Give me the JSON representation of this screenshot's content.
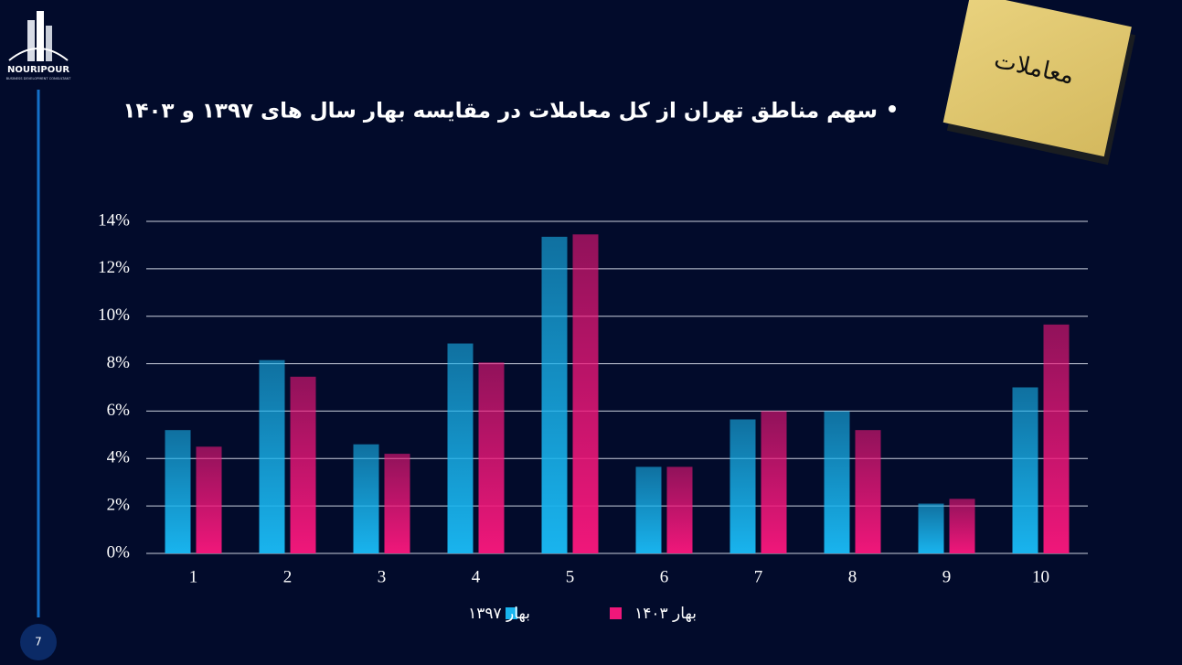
{
  "slide": {
    "logo_name": "NOURIPOUR",
    "logo_tagline": "BUSINESS DEVELOPMENT CONSULTANT",
    "note": "معاملات",
    "page_number": "7"
  },
  "chart_data": {
    "type": "bar",
    "title": "سهم مناطق تهران از کل معاملات در مقایسه بهار سال های ۱۳۹۷ و ۱۴۰۳",
    "categories": [
      "1",
      "2",
      "3",
      "4",
      "5",
      "6",
      "7",
      "8",
      "9",
      "10"
    ],
    "series": [
      {
        "name": "بهار ۱۳۹۷",
        "color": "#19b4ee",
        "values": [
          5.2,
          8.15,
          4.6,
          8.85,
          13.35,
          3.65,
          5.65,
          6.0,
          2.1,
          7.0
        ]
      },
      {
        "name": "بهار ۱۴۰۳",
        "color": "#f0177a",
        "values": [
          4.5,
          7.45,
          4.2,
          8.05,
          13.45,
          3.65,
          6.0,
          5.2,
          2.3,
          9.65
        ]
      }
    ],
    "ylim": [
      0,
      14
    ],
    "yticks": [
      {
        "value": 0,
        "label": "0%"
      },
      {
        "value": 2,
        "label": "2%"
      },
      {
        "value": 4,
        "label": "4%"
      },
      {
        "value": 6,
        "label": "6%"
      },
      {
        "value": 8,
        "label": "8%"
      },
      {
        "value": 10,
        "label": "10%"
      },
      {
        "value": 12,
        "label": "12%"
      },
      {
        "value": 14,
        "label": "14%"
      }
    ],
    "grid": true,
    "legend": "bottom"
  }
}
